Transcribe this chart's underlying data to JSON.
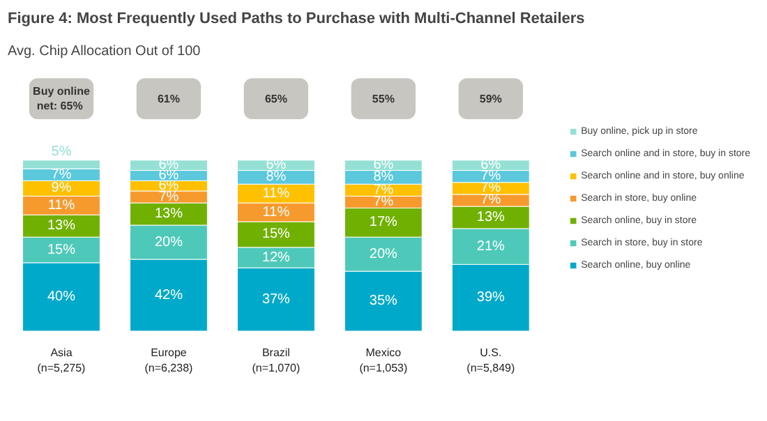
{
  "chart_data": {
    "type": "bar",
    "stacked": true,
    "legend": "right",
    "grid": false,
    "tick_labels": "x",
    "title": "Figure 4: Most Frequently Used Paths to Purchase with Multi-Channel Retailers",
    "subtitle": "Avg. Chip Allocation Out of 100",
    "categories": [
      "Asia\n(n=5,275)",
      "Europe\n(n=6,238)",
      "Brazil\n(n=1,070)",
      "Mexico\n(n=1,053)",
      "U.S.\n(n=5,849)"
    ],
    "series": [
      {
        "name": "Search online, buy online",
        "color": "#00a9c9",
        "values": [
          40,
          42,
          37,
          35,
          39
        ],
        "value_labels": [
          "40%",
          "42%",
          "37%",
          "35%",
          "39%"
        ]
      },
      {
        "name": "Search in store, buy in store",
        "color": "#4ec9b9",
        "values": [
          15,
          20,
          12,
          20,
          21
        ],
        "value_labels": [
          "15%",
          "20%",
          "12%",
          "20%",
          "21%"
        ]
      },
      {
        "name": "Search online, buy in store",
        "color": "#70b000",
        "values": [
          13,
          13,
          15,
          17,
          13
        ],
        "value_labels": [
          "13%",
          "13%",
          "15%",
          "17%",
          "13%"
        ]
      },
      {
        "name": "Search in store, buy online",
        "color": "#f79a2e",
        "values": [
          11,
          7,
          11,
          7,
          7
        ],
        "value_labels": [
          "11%",
          "7%",
          "11%",
          "7%",
          "7%"
        ]
      },
      {
        "name": "Search online and in store, buy online",
        "color": "#ffc000",
        "values": [
          9,
          6,
          11,
          7,
          7
        ],
        "value_labels": [
          "9%",
          "6%",
          "11%",
          "7%",
          "7%"
        ]
      },
      {
        "name": "Search online and in store, buy in store",
        "color": "#5bc8dc",
        "values": [
          7,
          6,
          8,
          8,
          7
        ],
        "value_labels": [
          "7%",
          "6%",
          "8%",
          "8%",
          "7%"
        ]
      },
      {
        "name": "Buy online, pick up in store",
        "color": "#94e0d4",
        "values": [
          5,
          6,
          6,
          6,
          6
        ],
        "value_labels": [
          "5%",
          "6%",
          "6%",
          "6%",
          "6%"
        ]
      }
    ],
    "annotations": [
      "Buy online\nnet:  65%",
      "61%",
      "65%",
      "55%",
      "59%"
    ]
  }
}
